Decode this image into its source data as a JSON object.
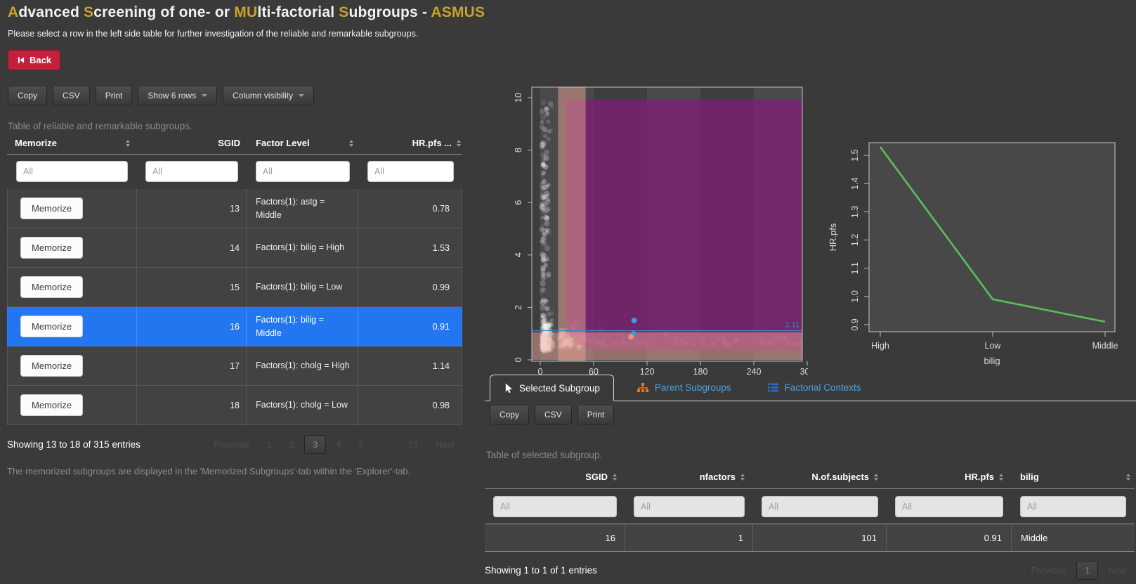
{
  "colors": {
    "accent_gold": "#c9a227",
    "back_red": "#c3203c",
    "selected_row_blue": "#2277f0",
    "tab_link_blue": "#4da0dd",
    "sitemap_icon_orange": "#e87a1d",
    "list_icon_blue": "#2b6cc8",
    "region_purple": "#7d1f75",
    "band_salmon": "#e8a294",
    "line_green": "#5abf5a",
    "reference_blue": "#3d85c4"
  },
  "header": {
    "title_segments": [
      {
        "text": "A",
        "gold": true
      },
      {
        "text": "dvanced ",
        "gold": false
      },
      {
        "text": "S",
        "gold": true
      },
      {
        "text": "creening of one- or ",
        "gold": false
      },
      {
        "text": "MU",
        "gold": true
      },
      {
        "text": "lti-factorial ",
        "gold": false
      },
      {
        "text": "S",
        "gold": true
      },
      {
        "text": "ubgroups - ",
        "gold": false
      },
      {
        "text": "ASMUS",
        "gold": true
      }
    ],
    "subtitle": "Please select a row in the left side table for further investigation of the reliable and remarkable subgroups.",
    "back_label": "Back"
  },
  "left_table": {
    "toolbar": {
      "copy": "Copy",
      "csv": "CSV",
      "print": "Print",
      "show_rows": "Show 6 rows",
      "column_visibility": "Column visibility"
    },
    "caption": "Table of reliable and remarkable subgroups.",
    "columns": [
      "Memorize",
      "SGID",
      "Factor Level",
      "HR.pfs ..."
    ],
    "filter_placeholder": "All",
    "rows": [
      {
        "memorize": "Memorize",
        "sgid": "13",
        "factor": "Factors(1): astg = Middle",
        "hr": "0.78",
        "selected": false
      },
      {
        "memorize": "Memorize",
        "sgid": "14",
        "factor": "Factors(1): bilig = High",
        "hr": "1.53",
        "selected": false
      },
      {
        "memorize": "Memorize",
        "sgid": "15",
        "factor": "Factors(1): bilig = Low",
        "hr": "0.99",
        "selected": false
      },
      {
        "memorize": "Memorize",
        "sgid": "16",
        "factor": "Factors(1): bilig = Middle",
        "hr": "0.91",
        "selected": true
      },
      {
        "memorize": "Memorize",
        "sgid": "17",
        "factor": "Factors(1): cholg = High",
        "hr": "1.14",
        "selected": false
      },
      {
        "memorize": "Memorize",
        "sgid": "18",
        "factor": "Factors(1): cholg = Low",
        "hr": "0.98",
        "selected": false
      }
    ],
    "info": "Showing 13 to 18 of 315 entries",
    "pagination": [
      "Previous",
      "1",
      "2",
      "3",
      "4",
      "5",
      "…",
      "53",
      "Next"
    ],
    "pagination_current": "3",
    "footnote": "The memorized subgroups are displayed in the 'Memorized Subgroups'-tab within the 'Explorer'-tab."
  },
  "tabs": [
    {
      "label": "Selected Subgroup",
      "icon": "cursor-icon",
      "active": true
    },
    {
      "label": "Parent Subgroups",
      "icon": "sitemap-icon",
      "active": false
    },
    {
      "label": "Factorial Contexts",
      "icon": "list-icon",
      "active": false
    }
  ],
  "selected_table": {
    "toolbar": {
      "copy": "Copy",
      "csv": "CSV",
      "print": "Print"
    },
    "caption": "Table of selected subgroup.",
    "columns": [
      "SGID",
      "nfactors",
      "N.of.subjects",
      "HR.pfs",
      "bilig"
    ],
    "filter_placeholder": "All",
    "row": {
      "sgid": "16",
      "nfactors": "1",
      "n_subjects": "101",
      "hr": "0.91",
      "bilig": "Middle"
    },
    "info": "Showing 1 to 1 of 1 entries",
    "pagination": [
      "Previous",
      "1",
      "Next"
    ],
    "pagination_current": "1"
  },
  "chart_data": [
    {
      "type": "scatter",
      "title": "",
      "xlabel": "",
      "ylabel": "",
      "xlim": [
        0,
        300
      ],
      "ylim": [
        0,
        10
      ],
      "x_ticks": [
        0,
        60,
        120,
        180,
        240,
        300
      ],
      "y_ticks": [
        0,
        2,
        4,
        6,
        8,
        10
      ],
      "background_cloud": {
        "color": "#ffffff",
        "clusters": [
          {
            "n": 240,
            "x_dist": "gauss",
            "x0": 2,
            "xs": 10,
            "y_dist": "gauss",
            "y0": 0.35,
            "ys": 1.0
          },
          {
            "n": 150,
            "x_dist": "gauss",
            "x0": 1.5,
            "xs": 9,
            "y_dist": "uniform",
            "y0": 0.2,
            "ys": 9.7
          },
          {
            "n": 130,
            "x_dist": "gauss",
            "x0": 22,
            "xs": 30,
            "y_dist": "gauss",
            "y0": 0.45,
            "ys": 0.75
          },
          {
            "n": 70,
            "x_dist": "uniform",
            "x0": 60,
            "xs": 235,
            "y_dist": "gauss",
            "y0": 0.55,
            "ys": 0.45
          }
        ]
      },
      "selected_region": {
        "x_from": 29,
        "x_to": 300,
        "y_from": 0.37,
        "y_to": 9.93,
        "color": "#7d1f75",
        "opacity": 0.78,
        "corner_radius": 45
      },
      "context_bands": [
        {
          "orient": "v",
          "from": 20,
          "to": 51,
          "color": "#e8a294",
          "opacity": 0.5
        },
        {
          "orient": "h",
          "from": 0,
          "to": 1.05,
          "color": "#e8a294",
          "opacity": 0.5
        }
      ],
      "reference_line": {
        "y": 1.11,
        "label": "1.11",
        "color": "#3d85c4"
      },
      "highlight_points": [
        {
          "x": 105.5,
          "y": 1.5,
          "color": "#3f97e8"
        },
        {
          "x": 104.8,
          "y": 0.99,
          "color": "#3f97e8"
        },
        {
          "x": 102,
          "y": 0.88,
          "color": "#ef8f7e"
        }
      ]
    },
    {
      "type": "line",
      "categories": [
        "High",
        "Low",
        "Middle"
      ],
      "values": [
        1.53,
        0.99,
        0.91
      ],
      "title": "",
      "xlabel": "bilig",
      "ylabel": "HR.pfs",
      "ylim": [
        0.875,
        1.545
      ],
      "y_ticks": [
        0.9,
        1.0,
        1.1,
        1.2,
        1.3,
        1.4,
        1.5
      ],
      "line_color": "#5abf5a"
    }
  ]
}
